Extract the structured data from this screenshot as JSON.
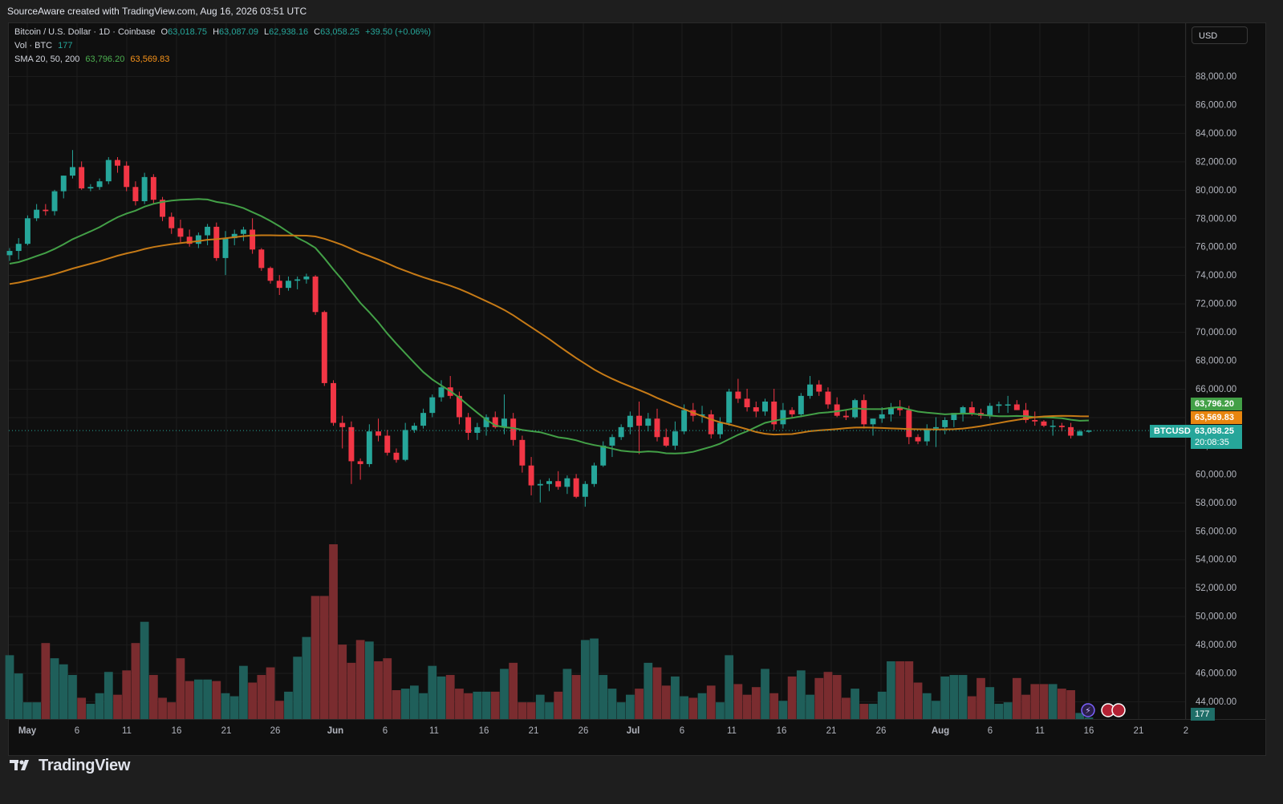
{
  "header": {
    "attribution": "SourceAware created with TradingView.com, Aug 16, 2026 03:51 UTC"
  },
  "legend": {
    "symbol": "Bitcoin / U.S. Dollar · 1D · Coinbase",
    "open_label": "O",
    "open": "63,018.75",
    "high_label": "H",
    "high": "63,087.09",
    "low_label": "L",
    "low": "62,938.16",
    "close_label": "C",
    "close": "63,058.25",
    "change": "+39.50 (+0.06%)",
    "vol_label": "Vol · BTC",
    "vol_value": "177",
    "sma_label": "SMA 20, 50, 200",
    "sma20": "63,796.20",
    "sma50": "63,569.83"
  },
  "currency_button": "USD",
  "price_axis": {
    "labels": [
      "88,000.00",
      "86,000.00",
      "84,000.00",
      "82,000.00",
      "80,000.00",
      "78,000.00",
      "76,000.00",
      "74,000.00",
      "72,000.00",
      "70,000.00",
      "68,000.00",
      "66,000.00",
      "64,000.00",
      "62,000.00",
      "60,000.00",
      "58,000.00",
      "56,000.00",
      "54,000.00",
      "52,000.00",
      "50,000.00",
      "48,000.00",
      "46,000.00",
      "44,000.00"
    ],
    "values": [
      88000,
      86000,
      84000,
      82000,
      80000,
      78000,
      76000,
      74000,
      72000,
      70000,
      68000,
      66000,
      64000,
      62000,
      60000,
      58000,
      56000,
      54000,
      52000,
      50000,
      48000,
      46000,
      44000
    ]
  },
  "price_tags": {
    "symbol_tag": "BTCUSD",
    "sma20_tag": "63,796.20",
    "sma50_tag": "63,569.83",
    "last_price_tag": "63,058.25",
    "countdown": "20:08:35",
    "volume_tag": "177"
  },
  "time_axis": {
    "labels": [
      "May",
      "6",
      "11",
      "16",
      "21",
      "26",
      "Jun",
      "6",
      "11",
      "16",
      "21",
      "26",
      "Jul",
      "6",
      "11",
      "16",
      "21",
      "26",
      "Aug",
      "6",
      "11",
      "16",
      "21",
      "2"
    ],
    "bold": [
      "May",
      "Jun",
      "Jul",
      "Aug"
    ]
  },
  "footer": {
    "brand": "TradingView"
  },
  "colors": {
    "up": "#26a69a",
    "down": "#f23645",
    "sma20": "#43a047",
    "sma50": "#c67a16",
    "vol_up": "#1f5f5a",
    "vol_down": "#7a2c2f",
    "background": "#0f0f0f"
  },
  "chart_data": {
    "type": "candlestick",
    "title": "Bitcoin / U.S. Dollar · 1D · Coinbase",
    "ylabel": "USD",
    "ylim": [
      43000,
      90000
    ],
    "candles": [
      [
        75400,
        75900,
        75000,
        75700
      ],
      [
        75700,
        76600,
        75100,
        76200
      ],
      [
        76200,
        78200,
        76100,
        78000
      ],
      [
        78000,
        79000,
        77800,
        78600
      ],
      [
        78600,
        79000,
        78200,
        78500
      ],
      [
        78500,
        80000,
        78200,
        79900
      ],
      [
        79900,
        81000,
        79400,
        81000
      ],
      [
        81000,
        82800,
        80800,
        81600
      ],
      [
        81600,
        82000,
        80000,
        80100
      ],
      [
        80100,
        80400,
        79900,
        80200
      ],
      [
        80200,
        80800,
        80000,
        80600
      ],
      [
        80600,
        82300,
        80400,
        82100
      ],
      [
        82100,
        82300,
        81200,
        81700
      ],
      [
        81700,
        82000,
        79900,
        80200
      ],
      [
        80200,
        80600,
        78900,
        79200
      ],
      [
        79200,
        81200,
        79000,
        80900
      ],
      [
        80900,
        81100,
        79000,
        79300
      ],
      [
        79300,
        79500,
        77800,
        78100
      ],
      [
        78100,
        78400,
        76900,
        77300
      ],
      [
        77300,
        77900,
        76300,
        76700
      ],
      [
        76700,
        77200,
        76000,
        76200
      ],
      [
        76200,
        77000,
        75900,
        76800
      ],
      [
        76800,
        77600,
        76100,
        77400
      ],
      [
        77400,
        77700,
        75000,
        75200
      ],
      [
        75200,
        77100,
        74000,
        76600
      ],
      [
        76600,
        77200,
        76100,
        76900
      ],
      [
        76900,
        77400,
        76400,
        77200
      ],
      [
        77200,
        78000,
        75500,
        75800
      ],
      [
        75800,
        75900,
        74300,
        74500
      ],
      [
        74500,
        74600,
        73400,
        73600
      ],
      [
        73600,
        74000,
        72600,
        73100
      ],
      [
        73100,
        73900,
        72900,
        73600
      ],
      [
        73600,
        73900,
        73000,
        73700
      ],
      [
        73700,
        74100,
        73400,
        73900
      ],
      [
        73900,
        74000,
        71200,
        71400
      ],
      [
        71400,
        71500,
        66200,
        66400
      ],
      [
        66400,
        66600,
        63400,
        63600
      ],
      [
        63600,
        64100,
        61800,
        63300
      ],
      [
        63300,
        63700,
        59300,
        60900
      ],
      [
        60900,
        61100,
        59600,
        60700
      ],
      [
        60700,
        63500,
        60500,
        63000
      ],
      [
        63000,
        63900,
        62300,
        62700
      ],
      [
        62700,
        63100,
        61300,
        61500
      ],
      [
        61500,
        61800,
        60800,
        61000
      ],
      [
        61000,
        63600,
        60900,
        63100
      ],
      [
        63100,
        63600,
        62900,
        63400
      ],
      [
        63400,
        64600,
        63200,
        64300
      ],
      [
        64300,
        65600,
        64000,
        65400
      ],
      [
        65400,
        66600,
        65100,
        66100
      ],
      [
        66100,
        66900,
        65300,
        65500
      ],
      [
        65500,
        65800,
        63500,
        64000
      ],
      [
        64000,
        64300,
        62400,
        62900
      ],
      [
        62900,
        63600,
        62400,
        63300
      ],
      [
        63300,
        64200,
        62700,
        64000
      ],
      [
        64000,
        64400,
        63200,
        63300
      ],
      [
        63300,
        65600,
        62800,
        63900
      ],
      [
        63900,
        64300,
        62000,
        62400
      ],
      [
        62400,
        62700,
        60100,
        60600
      ],
      [
        60600,
        61200,
        58500,
        59200
      ],
      [
        59200,
        59600,
        58000,
        59300
      ],
      [
        59300,
        59700,
        58800,
        59500
      ],
      [
        59500,
        60200,
        58900,
        59100
      ],
      [
        59100,
        59900,
        58600,
        59700
      ],
      [
        59700,
        60000,
        58300,
        58400
      ],
      [
        58400,
        59500,
        57700,
        59300
      ],
      [
        59300,
        60800,
        59100,
        60600
      ],
      [
        60600,
        62300,
        60500,
        62000
      ],
      [
        62000,
        62800,
        61200,
        62600
      ],
      [
        62600,
        63500,
        62400,
        63300
      ],
      [
        63300,
        64400,
        62800,
        64100
      ],
      [
        64100,
        65100,
        61400,
        63400
      ],
      [
        63400,
        64300,
        63000,
        63900
      ],
      [
        63900,
        64600,
        62300,
        62600
      ],
      [
        62600,
        63200,
        61900,
        62000
      ],
      [
        62000,
        63700,
        61700,
        63000
      ],
      [
        63000,
        64900,
        62800,
        64500
      ],
      [
        64500,
        65000,
        63700,
        64100
      ],
      [
        64100,
        64800,
        63600,
        64200
      ],
      [
        64200,
        64500,
        62500,
        62800
      ],
      [
        62800,
        64000,
        62500,
        63600
      ],
      [
        63600,
        66000,
        63400,
        65800
      ],
      [
        65800,
        66700,
        65000,
        65300
      ],
      [
        65300,
        66000,
        64400,
        64700
      ],
      [
        64700,
        65100,
        64000,
        64400
      ],
      [
        64400,
        65300,
        64100,
        65100
      ],
      [
        65100,
        66000,
        63100,
        63500
      ],
      [
        63500,
        65000,
        63200,
        64500
      ],
      [
        64500,
        64700,
        64000,
        64200
      ],
      [
        64200,
        65700,
        64000,
        65500
      ],
      [
        65500,
        66900,
        65300,
        66300
      ],
      [
        66300,
        66600,
        65500,
        65800
      ],
      [
        65800,
        66100,
        64600,
        64900
      ],
      [
        64900,
        65400,
        64000,
        64100
      ],
      [
        64100,
        64500,
        63800,
        64000
      ],
      [
        64000,
        65300,
        63900,
        65200
      ],
      [
        65200,
        65600,
        63200,
        63500
      ],
      [
        63500,
        63900,
        62700,
        63900
      ],
      [
        63900,
        64700,
        63600,
        64200
      ],
      [
        64200,
        65000,
        63700,
        64700
      ],
      [
        64700,
        65200,
        64100,
        64500
      ],
      [
        64500,
        64800,
        62100,
        62600
      ],
      [
        62600,
        62800,
        62100,
        62300
      ],
      [
        62300,
        63500,
        62000,
        63200
      ],
      [
        63200,
        64000,
        61900,
        63300
      ],
      [
        63300,
        64000,
        62800,
        63800
      ],
      [
        63800,
        64100,
        63300,
        64300
      ],
      [
        64300,
        64800,
        63700,
        64700
      ],
      [
        64700,
        65100,
        64100,
        64300
      ],
      [
        64300,
        64600,
        63900,
        64100
      ],
      [
        64100,
        65000,
        63900,
        64800
      ],
      [
        64800,
        65100,
        64300,
        64900
      ],
      [
        64900,
        65500,
        64300,
        64900
      ],
      [
        64900,
        65200,
        64500,
        64500
      ],
      [
        64500,
        65000,
        63600,
        63800
      ],
      [
        63800,
        64400,
        63400,
        63700
      ],
      [
        63700,
        63800,
        63300,
        63400
      ],
      [
        63400,
        63800,
        62700,
        63400
      ],
      [
        63400,
        63600,
        63000,
        63300
      ],
      [
        63300,
        63600,
        62500,
        62700
      ],
      [
        62700,
        63100,
        62900,
        63000
      ],
      [
        63000,
        63100,
        62900,
        63058
      ]
    ],
    "volume_candle_matched": true
  }
}
